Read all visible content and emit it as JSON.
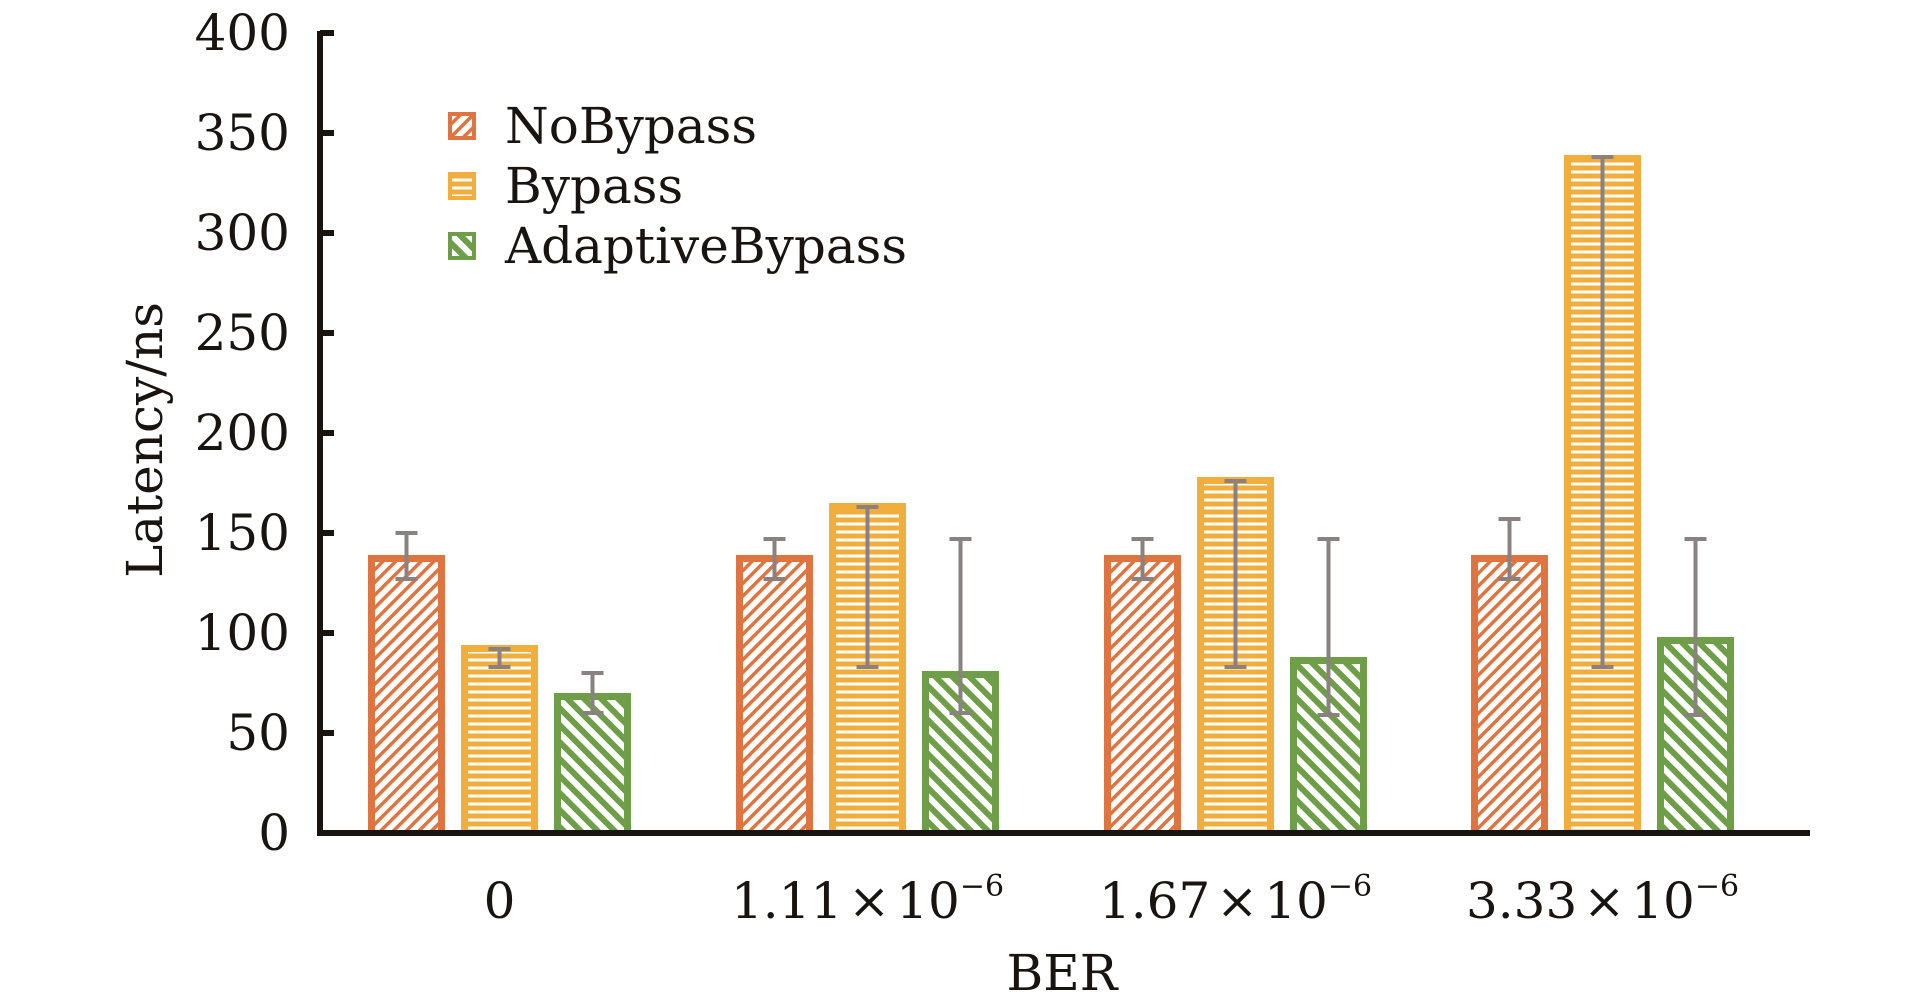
{
  "chart_data": {
    "type": "bar",
    "title": "",
    "xlabel": "BER",
    "ylabel": "Latency/ns",
    "ylim": [
      0,
      400
    ],
    "yticks": [
      "0",
      "50",
      "100",
      "150",
      "200",
      "250",
      "300",
      "350",
      "400"
    ],
    "categories": [
      {
        "mantissa": "0",
        "times": "",
        "base": "",
        "exp": ""
      },
      {
        "mantissa": "1.11",
        "times": "×",
        "base": "10",
        "exp": "−6"
      },
      {
        "mantissa": "1.67",
        "times": "×",
        "base": "10",
        "exp": "−6"
      },
      {
        "mantissa": "3.33",
        "times": "×",
        "base": "10",
        "exp": "−6"
      }
    ],
    "legend_position": "top-left",
    "grid": false,
    "series": [
      {
        "name": "NoBypass",
        "color": "#e07440",
        "pattern": "diagonal-forward",
        "values": [
          139,
          139,
          139,
          139
        ],
        "err_low": [
          127,
          127,
          127,
          127
        ],
        "err_high": [
          150,
          147,
          147,
          157
        ]
      },
      {
        "name": "Bypass",
        "color": "#f2ae3c",
        "pattern": "horizontal",
        "values": [
          94,
          165,
          178,
          339
        ],
        "err_low": [
          83,
          83,
          83,
          83
        ],
        "err_high": [
          92,
          163,
          176,
          338
        ]
      },
      {
        "name": "AdaptiveBypass",
        "color": "#6e9e48",
        "pattern": "diagonal-backward",
        "values": [
          70,
          81,
          88,
          98
        ],
        "err_low": [
          60,
          60,
          59,
          59
        ],
        "err_high": [
          80,
          147,
          147,
          147
        ]
      }
    ],
    "error_bar_color": "#8a8280"
  }
}
